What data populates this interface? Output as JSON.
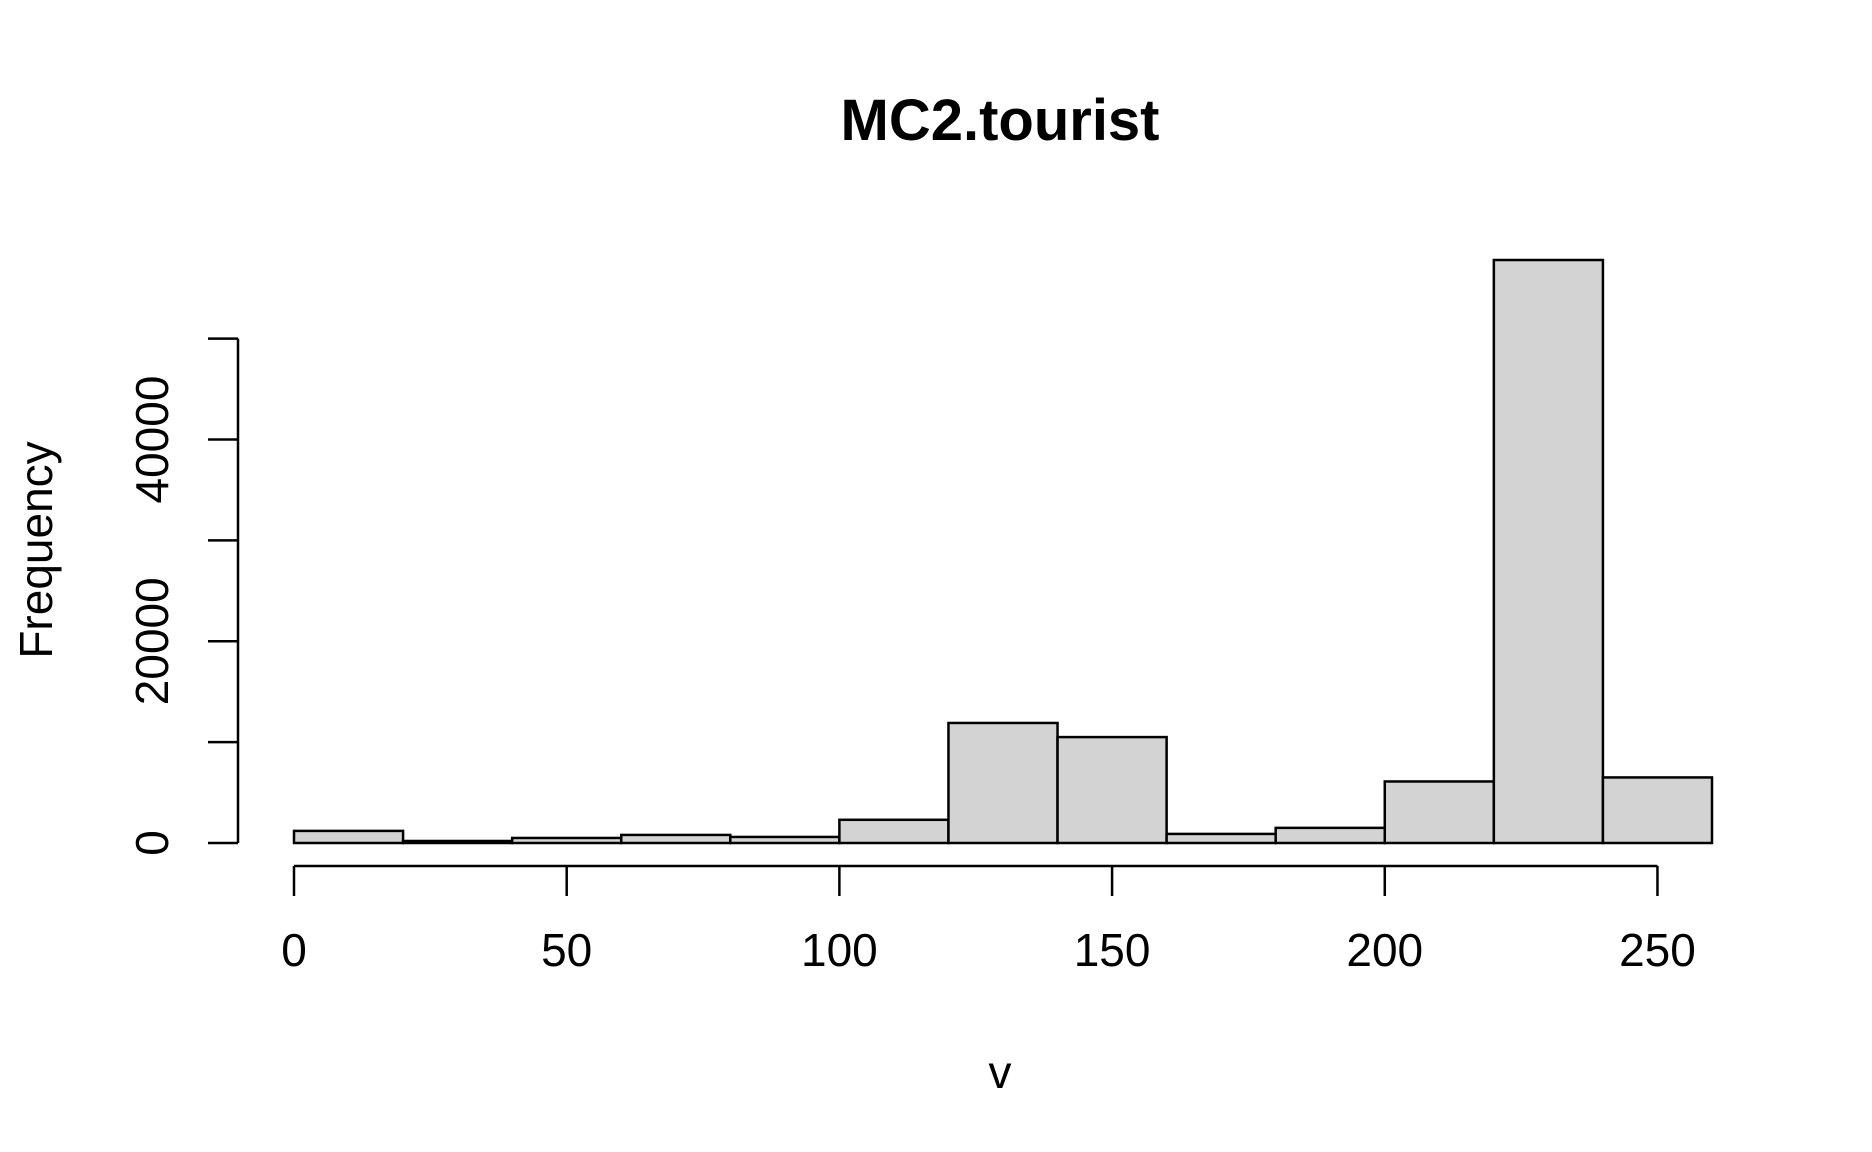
{
  "chart_data": {
    "type": "bar",
    "title": "MC2.tourist",
    "xlabel": "v",
    "ylabel": "Frequency",
    "bin_edges": [
      0,
      20,
      40,
      60,
      80,
      100,
      120,
      140,
      160,
      180,
      200,
      220,
      240,
      260
    ],
    "values": [
      1200,
      200,
      500,
      800,
      600,
      2300,
      11900,
      10500,
      900,
      1500,
      6100,
      57800,
      6500
    ],
    "xlim": [
      0,
      260
    ],
    "ylim": [
      0,
      57800
    ],
    "xticks": [
      0,
      50,
      100,
      150,
      200,
      250
    ],
    "xtick_labels": [
      "0",
      "50",
      "100",
      "150",
      "200",
      "250"
    ],
    "yticks": [
      0,
      10000,
      20000,
      30000,
      40000,
      50000
    ],
    "ytick_labels": [
      "0",
      "",
      "20000",
      "",
      "40000",
      ""
    ],
    "bar_fill": "#d3d3d3",
    "bar_stroke": "#000000",
    "grid": false
  }
}
